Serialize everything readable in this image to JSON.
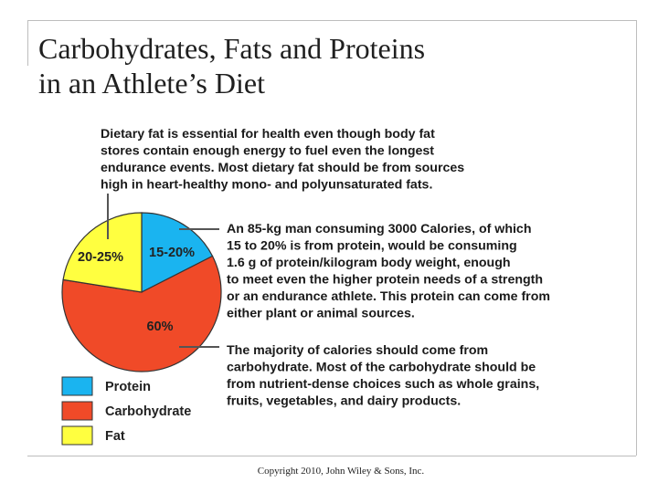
{
  "title": {
    "line1": "Carbohydrates, Fats and Proteins",
    "line2": "in an Athlete’s Diet"
  },
  "copyright": "Copyright 2010, John Wiley & Sons, Inc.",
  "colors": {
    "protein": "#1ab4f0",
    "carbohydrate": "#f04a28",
    "fat": "#ffff40",
    "outline": "#333333",
    "leader": "#555555"
  },
  "chart_data": {
    "type": "pie",
    "slices": [
      {
        "name": "Protein",
        "label": "15-20%",
        "value": 17.5,
        "color_key": "protein"
      },
      {
        "name": "Carbohydrate",
        "label": "60%",
        "value": 60,
        "color_key": "carbohydrate"
      },
      {
        "name": "Fat",
        "label": "20-25%",
        "value": 22.5,
        "color_key": "fat"
      }
    ],
    "legend": [
      {
        "label": "Protein",
        "color_key": "protein"
      },
      {
        "label": "Carbohydrate",
        "color_key": "carbohydrate"
      },
      {
        "label": "Fat",
        "color_key": "fat"
      }
    ],
    "legend_placement": "bottom-left",
    "annotations": [
      {
        "target": "Fat",
        "lines": [
          "Dietary fat is essential for health even though body fat",
          "stores contain enough energy to fuel even the longest",
          "endurance events. Most dietary fat should be from sources",
          "high in heart-healthy mono- and polyunsaturated fats."
        ]
      },
      {
        "target": "Protein",
        "lines": [
          "An 85-kg man consuming 3000 Calories, of which",
          "15 to 20% is from protein, would be consuming",
          "1.6 g of protein/kilogram body weight, enough",
          "to meet even the higher protein needs of a strength",
          "or an endurance athlete. This protein can come from",
          "either plant or animal sources."
        ]
      },
      {
        "target": "Carbohydrate",
        "lines": [
          "The majority of calories should come from",
          "carbohydrate. Most of the carbohydrate should be",
          "from nutrient-dense choices such as whole grains,",
          "fruits, vegetables, and dairy products."
        ]
      }
    ]
  }
}
